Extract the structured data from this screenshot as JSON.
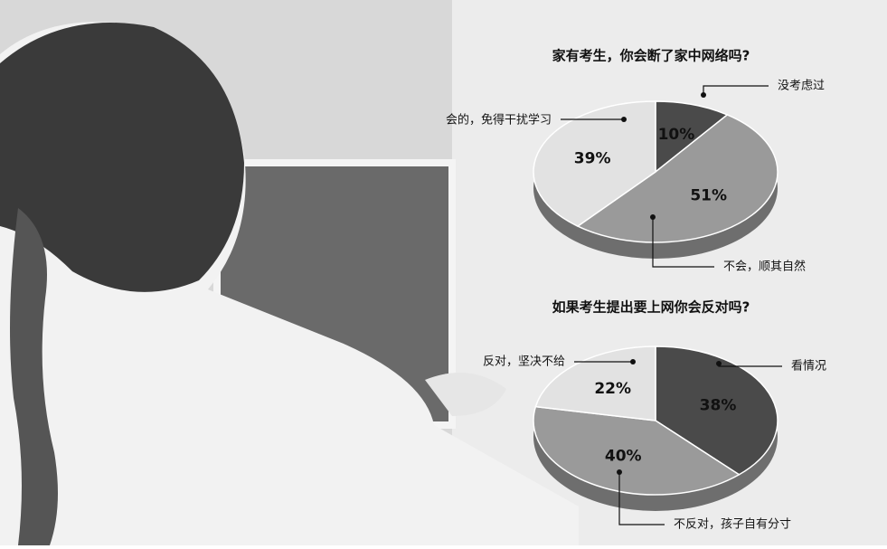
{
  "chart_data": [
    {
      "type": "pie",
      "title": "家有考生，你会断了家中网络吗?",
      "categories": [
        "没考虑过",
        "不会，顺其自然",
        "会的，免得干扰学习"
      ],
      "values": [
        10,
        51,
        39
      ],
      "value_labels": [
        "10%",
        "51%",
        "39%"
      ],
      "colors": [
        "#4a4a4a",
        "#9a9a9a",
        "#e2e2e2"
      ]
    },
    {
      "type": "pie",
      "title": "如果考生提出要上网你会反对吗?",
      "categories": [
        "看情况",
        "不反对，孩子自有分寸",
        "反对，坚决不给"
      ],
      "values": [
        38,
        40,
        22
      ],
      "value_labels": [
        "38%",
        "40%",
        "22%"
      ],
      "colors": [
        "#4a4a4a",
        "#9a9a9a",
        "#e2e2e2"
      ]
    }
  ]
}
